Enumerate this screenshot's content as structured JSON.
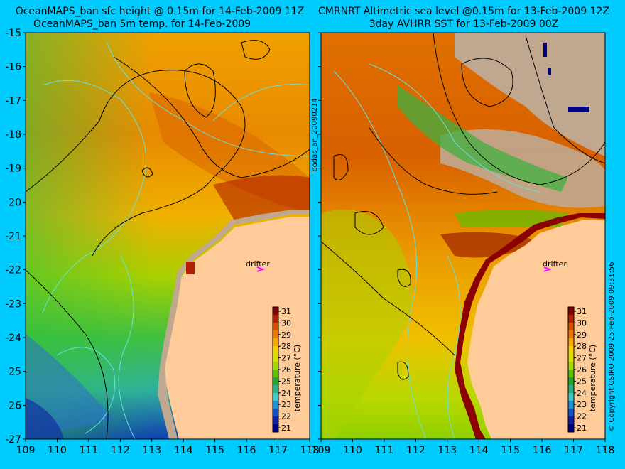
{
  "left_panel": {
    "title_line1": "OceanMAPS_ban sfc height @ 0.15m for 14-Feb-2009 11Z",
    "title_line2": "OceanMAPS_ban 5m temp. for 14-Feb-2009",
    "drifter_label": "drifter",
    "colorbar_label": "temperature (°C)"
  },
  "right_panel": {
    "title_line1": "CMRNRT Altimetric sea level  @0.15m  for 13-Feb-2009 12Z",
    "title_line2": "3day AVHRR SST for 13-Feb-2009 00Z",
    "drifter_label": "drifter",
    "colorbar_label": "temperature (°C)"
  },
  "side_label_left": "bodas_an_20090214",
  "side_label_right": "© Copyright CSIRO 2009   25-Feb-2009 09:31:56",
  "axes": {
    "x_ticks": [
      "109",
      "110",
      "111",
      "112",
      "113",
      "114",
      "115",
      "116",
      "117",
      "118"
    ],
    "y_ticks": [
      "-15",
      "-16",
      "-17",
      "-18",
      "-19",
      "-20",
      "-21",
      "-22",
      "-23",
      "-24",
      "-25",
      "-26",
      "-27"
    ],
    "lon_range": [
      109,
      118
    ],
    "lat_range": [
      -27,
      -15
    ]
  },
  "colorbar": {
    "ticks": [
      "31",
      "30",
      "29",
      "28",
      "27",
      "26",
      "25",
      "24",
      "23",
      "22",
      "21"
    ],
    "colors": [
      "#8b0000",
      "#b22000",
      "#d94c00",
      "#f07a00",
      "#f5a800",
      "#f0d000",
      "#d8e000",
      "#a8d400",
      "#5cc000",
      "#1ea828",
      "#30b080",
      "#40c8c8",
      "#2090d8",
      "#1050c8",
      "#1020a0",
      "#000080"
    ]
  },
  "colors": {
    "background": "#00ccff",
    "land": "#ffcc99",
    "coast_shelf": "#c0a890",
    "contour_black": "#000000",
    "contour_cyan": "#66e0e0",
    "drifter_marker": "#ff00ff"
  }
}
